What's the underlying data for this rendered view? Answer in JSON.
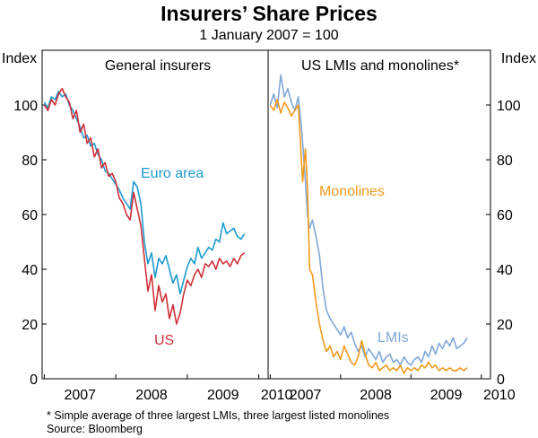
{
  "title": "Insurers’ Share Prices",
  "subtitle": "1 January 2007 = 100",
  "notes": {
    "footnote": "*   Simple average of three largest LMIs, three largest listed monolines",
    "source": "Source: Bloomberg"
  },
  "chart_data": [
    {
      "type": "line",
      "panel_title": "General insurers",
      "ylabel": "Index",
      "ylim": [
        0,
        120
      ],
      "yticks": [
        0,
        20,
        40,
        60,
        80,
        100
      ],
      "xlim": [
        2006.97,
        2010.13
      ],
      "xticks": [
        "2007",
        "2008",
        "2009",
        "2010"
      ],
      "series": [
        {
          "name": "Euro area",
          "color": "#1c9bd0",
          "x": [
            2007.0,
            2007.05,
            2007.1,
            2007.15,
            2007.2,
            2007.25,
            2007.3,
            2007.35,
            2007.4,
            2007.45,
            2007.5,
            2007.55,
            2007.6,
            2007.65,
            2007.7,
            2007.75,
            2007.8,
            2007.85,
            2007.9,
            2007.95,
            2008.0,
            2008.05,
            2008.1,
            2008.15,
            2008.2,
            2008.25,
            2008.3,
            2008.35,
            2008.4,
            2008.45,
            2008.5,
            2008.55,
            2008.6,
            2008.65,
            2008.7,
            2008.75,
            2008.8,
            2008.85,
            2008.9,
            2008.95,
            2009.0,
            2009.05,
            2009.1,
            2009.15,
            2009.2,
            2009.25,
            2009.3,
            2009.35,
            2009.4,
            2009.45,
            2009.5,
            2009.55,
            2009.6,
            2009.65,
            2009.7,
            2009.75,
            2009.8
          ],
          "values": [
            101,
            99,
            103,
            102,
            105,
            103,
            104,
            100,
            98,
            95,
            92,
            88,
            89,
            85,
            86,
            82,
            80,
            76,
            75,
            73,
            71,
            69,
            66,
            64,
            62,
            72,
            70,
            64,
            50,
            42,
            46,
            37,
            44,
            42,
            45,
            40,
            35,
            38,
            31,
            36,
            41,
            44,
            42,
            48,
            44,
            46,
            48,
            47,
            51,
            50,
            57,
            53,
            54,
            55,
            52,
            51,
            53
          ]
        },
        {
          "name": "US",
          "color": "#d03038",
          "x": [
            2007.0,
            2007.05,
            2007.1,
            2007.15,
            2007.2,
            2007.25,
            2007.3,
            2007.35,
            2007.4,
            2007.45,
            2007.5,
            2007.55,
            2007.6,
            2007.65,
            2007.7,
            2007.75,
            2007.8,
            2007.85,
            2007.9,
            2007.95,
            2008.0,
            2008.05,
            2008.1,
            2008.15,
            2008.2,
            2008.25,
            2008.3,
            2008.35,
            2008.4,
            2008.45,
            2008.5,
            2008.55,
            2008.6,
            2008.65,
            2008.7,
            2008.75,
            2008.8,
            2008.85,
            2008.9,
            2008.95,
            2009.0,
            2009.05,
            2009.1,
            2009.15,
            2009.2,
            2009.25,
            2009.3,
            2009.35,
            2009.4,
            2009.45,
            2009.5,
            2009.55,
            2009.6,
            2009.65,
            2009.7,
            2009.75,
            2009.8
          ],
          "values": [
            100,
            98,
            102,
            100,
            104,
            106,
            103,
            101,
            95,
            98,
            90,
            93,
            86,
            88,
            81,
            84,
            77,
            79,
            74,
            75,
            72,
            66,
            64,
            60,
            58,
            68,
            62,
            56,
            44,
            32,
            38,
            25,
            34,
            28,
            31,
            22,
            27,
            20,
            24,
            31,
            36,
            34,
            38,
            40,
            37,
            42,
            41,
            43,
            40,
            44,
            42,
            43,
            41,
            44,
            42,
            45,
            46
          ]
        }
      ],
      "annotations": [
        "Euro area",
        "US"
      ]
    },
    {
      "type": "line",
      "panel_title": "US LMIs and monolines*",
      "ylabel": "Index",
      "ylim": [
        0,
        120
      ],
      "yticks": [
        0,
        20,
        40,
        60,
        80,
        100
      ],
      "xlim": [
        2006.97,
        2010.13
      ],
      "xticks": [
        "2007",
        "2008",
        "2009",
        "2010"
      ],
      "series": [
        {
          "name": "LMIs",
          "color": "#7fa8d8",
          "x": [
            2007.0,
            2007.05,
            2007.1,
            2007.15,
            2007.2,
            2007.25,
            2007.3,
            2007.35,
            2007.4,
            2007.45,
            2007.5,
            2007.53,
            2007.56,
            2007.6,
            2007.65,
            2007.7,
            2007.75,
            2007.8,
            2007.85,
            2007.9,
            2007.95,
            2008.0,
            2008.05,
            2008.1,
            2008.15,
            2008.2,
            2008.25,
            2008.3,
            2008.35,
            2008.4,
            2008.45,
            2008.5,
            2008.55,
            2008.6,
            2008.65,
            2008.7,
            2008.75,
            2008.8,
            2008.85,
            2008.9,
            2008.95,
            2009.0,
            2009.05,
            2009.1,
            2009.15,
            2009.2,
            2009.25,
            2009.3,
            2009.35,
            2009.4,
            2009.45,
            2009.5,
            2009.55,
            2009.6,
            2009.65,
            2009.7,
            2009.75,
            2009.8
          ],
          "values": [
            100,
            104,
            99,
            111,
            103,
            106,
            101,
            98,
            103,
            90,
            72,
            60,
            55,
            58,
            52,
            45,
            33,
            25,
            22,
            20,
            18,
            16,
            19,
            15,
            17,
            13,
            10,
            12,
            8,
            11,
            9,
            7,
            10,
            6,
            8,
            9,
            6,
            7,
            5,
            8,
            6,
            5,
            7,
            8,
            6,
            10,
            8,
            12,
            9,
            13,
            11,
            14,
            12,
            15,
            11,
            12,
            13,
            15
          ]
        },
        {
          "name": "Monolines",
          "color": "#f39a1e",
          "x": [
            2007.0,
            2007.05,
            2007.1,
            2007.15,
            2007.2,
            2007.25,
            2007.3,
            2007.35,
            2007.4,
            2007.43,
            2007.46,
            2007.5,
            2007.53,
            2007.56,
            2007.6,
            2007.65,
            2007.7,
            2007.75,
            2007.8,
            2007.85,
            2007.9,
            2007.95,
            2008.0,
            2008.05,
            2008.1,
            2008.15,
            2008.2,
            2008.25,
            2008.3,
            2008.35,
            2008.4,
            2008.45,
            2008.5,
            2008.55,
            2008.6,
            2008.65,
            2008.7,
            2008.75,
            2008.8,
            2008.85,
            2008.9,
            2008.95,
            2009.0,
            2009.05,
            2009.1,
            2009.15,
            2009.2,
            2009.25,
            2009.3,
            2009.35,
            2009.4,
            2009.45,
            2009.5,
            2009.55,
            2009.6,
            2009.65,
            2009.7,
            2009.75,
            2009.8
          ],
          "values": [
            100,
            98,
            102,
            97,
            101,
            99,
            96,
            98,
            100,
            86,
            72,
            84,
            70,
            40,
            38,
            28,
            20,
            14,
            10,
            12,
            8,
            10,
            7,
            12,
            9,
            6,
            5,
            8,
            14,
            9,
            5,
            4,
            6,
            3,
            4,
            5,
            3,
            4,
            3,
            5,
            2,
            4,
            3,
            4,
            3,
            5,
            4,
            6,
            4,
            5,
            3,
            4,
            3,
            4,
            3,
            3,
            4,
            3,
            4
          ]
        }
      ],
      "annotations": [
        "Monolines",
        "LMIs"
      ]
    }
  ]
}
